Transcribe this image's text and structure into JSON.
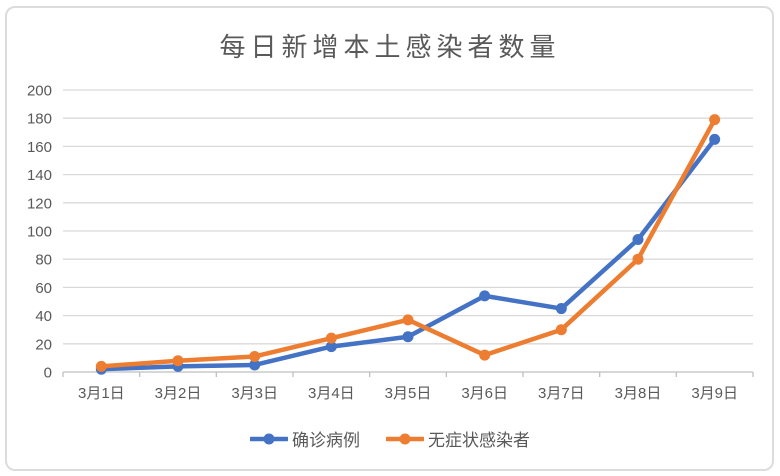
{
  "chart_data": {
    "type": "line",
    "title": "每日新增本土感染者数量",
    "categories": [
      "3月1日",
      "3月2日",
      "3月3日",
      "3月4日",
      "3月5日",
      "3月6日",
      "3月7日",
      "3月8日",
      "3月9日"
    ],
    "series": [
      {
        "name": "确诊病例",
        "color": "#4472C4",
        "values": [
          2,
          4,
          5,
          18,
          25,
          54,
          45,
          94,
          165
        ]
      },
      {
        "name": "无症状感染者",
        "color": "#ED7D31",
        "values": [
          4,
          8,
          11,
          24,
          37,
          12,
          30,
          80,
          179
        ]
      }
    ],
    "xlabel": "",
    "ylabel": "",
    "ylim": [
      0,
      200
    ],
    "ytick_step": 20,
    "grid": true,
    "legend_position": "bottom",
    "marker": "circle"
  },
  "style": {
    "grid_color": "#D9D9D9",
    "axis_color": "#BFBFBF",
    "tick_text_color": "#595959",
    "title_color": "#595959",
    "border_color": "#DCDCDC",
    "background": "#FFFFFF"
  }
}
